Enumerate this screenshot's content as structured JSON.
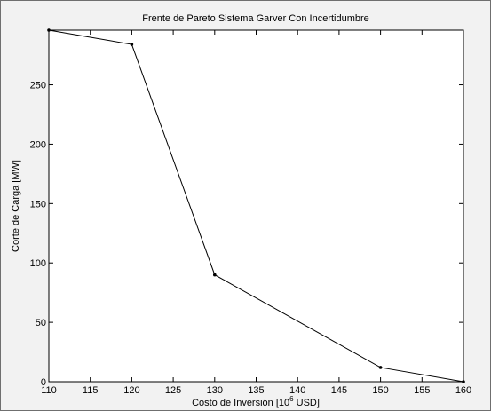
{
  "chart_data": {
    "type": "line",
    "title": "Frente de Pareto Sistema Garver Con Incertidumbre",
    "xlabel_main": "Costo de Inversión [10",
    "xlabel_sup": "6",
    "xlabel_tail": " USD]",
    "ylabel": "Corte de Carga [MW]",
    "xlim": [
      110,
      160
    ],
    "ylim": [
      0,
      296
    ],
    "xticks": [
      110,
      115,
      120,
      125,
      130,
      135,
      140,
      145,
      150,
      155,
      160
    ],
    "yticks": [
      0,
      50,
      100,
      150,
      200,
      250
    ],
    "grid": false,
    "series": [
      {
        "x": [
          110,
          120,
          130,
          150,
          160
        ],
        "y": [
          296,
          284,
          90,
          12,
          0
        ],
        "color": "#000000",
        "marker": "point"
      }
    ]
  },
  "colors": {
    "figure_background": "#f2f2f2",
    "plot_background": "#ffffff",
    "line": "#000000"
  }
}
